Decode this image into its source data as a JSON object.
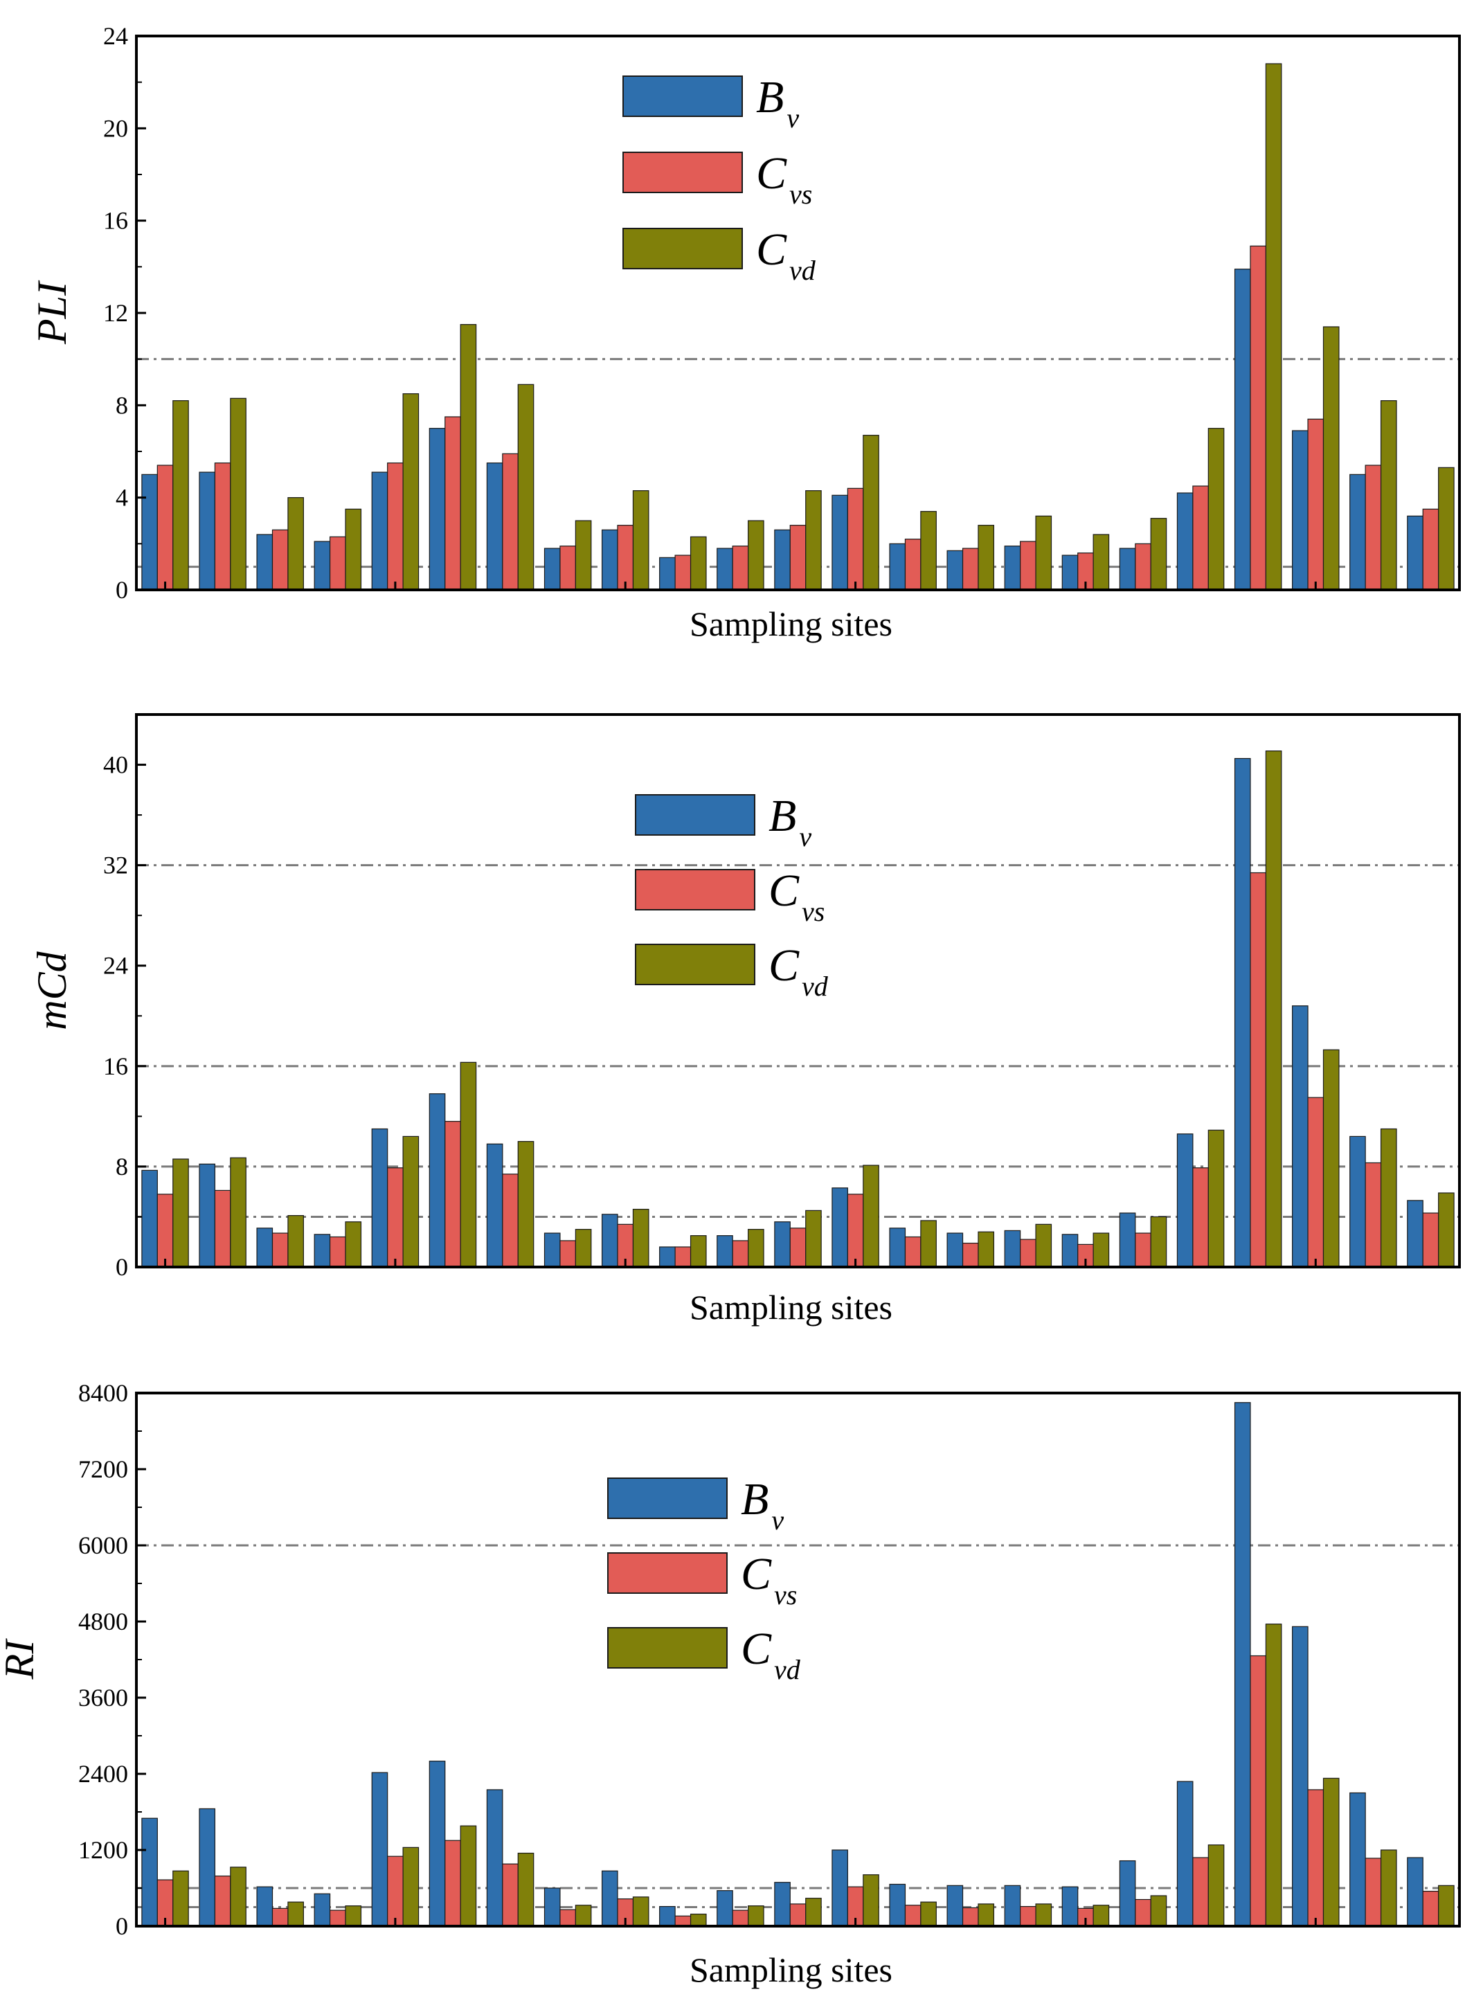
{
  "colors": {
    "Bv": "#2e6fad",
    "Cvs": "#e25c56",
    "Cvd": "#80800a",
    "frame": "#000000",
    "refline": "#7a7a7a"
  },
  "legend": [
    {
      "key": "Bv",
      "main": "B",
      "sub": "v"
    },
    {
      "key": "Cvs",
      "main": "C",
      "sub": "vs"
    },
    {
      "key": "Cvd",
      "main": "C",
      "sub": "vd"
    }
  ],
  "chart_data": [
    {
      "type": "bar",
      "title": "",
      "xlabel": "Sampling sites",
      "ylabel": "PLI",
      "ylim": [
        0,
        24
      ],
      "yticks": [
        0,
        4,
        8,
        12,
        16,
        20,
        24
      ],
      "reference_lines": [
        1,
        10
      ],
      "series": [
        {
          "name": "Bv",
          "values": [
            5.0,
            5.1,
            2.4,
            2.1,
            5.1,
            7.0,
            5.5,
            1.8,
            2.6,
            1.4,
            1.8,
            2.6,
            4.1,
            2.0,
            1.7,
            1.9,
            1.5,
            1.8,
            4.2,
            13.9,
            6.9,
            5.0,
            3.2
          ]
        },
        {
          "name": "Cvs",
          "values": [
            5.4,
            5.5,
            2.6,
            2.3,
            5.5,
            7.5,
            5.9,
            1.9,
            2.8,
            1.5,
            1.9,
            2.8,
            4.4,
            2.2,
            1.8,
            2.1,
            1.6,
            2.0,
            4.5,
            14.9,
            7.4,
            5.4,
            3.5
          ]
        },
        {
          "name": "Cvd",
          "values": [
            8.2,
            8.3,
            4.0,
            3.5,
            8.5,
            11.5,
            8.9,
            3.0,
            4.3,
            2.3,
            3.0,
            4.3,
            6.7,
            3.4,
            2.8,
            3.2,
            2.4,
            3.1,
            7.0,
            22.8,
            11.4,
            8.2,
            5.3
          ]
        }
      ]
    },
    {
      "type": "bar",
      "title": "",
      "xlabel": "Sampling sites",
      "ylabel": "mCd",
      "ylim": [
        0,
        44
      ],
      "yticks": [
        0,
        8,
        16,
        24,
        32,
        40
      ],
      "reference_lines": [
        4,
        8,
        16,
        32
      ],
      "series": [
        {
          "name": "Bv",
          "values": [
            7.7,
            8.2,
            3.1,
            2.6,
            11.0,
            13.8,
            9.8,
            2.7,
            4.2,
            1.6,
            2.5,
            3.6,
            6.3,
            3.1,
            2.7,
            2.9,
            2.6,
            4.3,
            10.6,
            40.5,
            20.8,
            10.4,
            5.3
          ]
        },
        {
          "name": "Cvs",
          "values": [
            5.8,
            6.1,
            2.7,
            2.4,
            7.9,
            11.6,
            7.4,
            2.1,
            3.4,
            1.6,
            2.1,
            3.1,
            5.8,
            2.4,
            1.9,
            2.2,
            1.8,
            2.7,
            7.9,
            31.4,
            13.5,
            8.3,
            4.3
          ]
        },
        {
          "name": "Cvd",
          "values": [
            8.6,
            8.7,
            4.1,
            3.6,
            10.4,
            16.3,
            10.0,
            3.0,
            4.6,
            2.5,
            3.0,
            4.5,
            8.1,
            3.7,
            2.8,
            3.4,
            2.7,
            4.0,
            10.9,
            41.1,
            17.3,
            11.0,
            5.9
          ]
        }
      ]
    },
    {
      "type": "bar",
      "title": "",
      "xlabel": "Sampling sites",
      "ylabel": "RI",
      "ylim": [
        0,
        8400
      ],
      "yticks": [
        0,
        1200,
        2400,
        3600,
        4800,
        6000,
        7200,
        8400
      ],
      "reference_lines": [
        300,
        600,
        6000
      ],
      "series": [
        {
          "name": "Bv",
          "values": [
            1700,
            1850,
            620,
            510,
            2420,
            2600,
            2150,
            600,
            870,
            310,
            560,
            690,
            1200,
            660,
            640,
            640,
            620,
            1030,
            2280,
            8250,
            4720,
            2100,
            1080
          ]
        },
        {
          "name": "Cvs",
          "values": [
            730,
            790,
            280,
            250,
            1100,
            1350,
            980,
            260,
            430,
            160,
            250,
            350,
            620,
            330,
            290,
            310,
            280,
            420,
            1080,
            4260,
            2150,
            1070,
            550
          ]
        },
        {
          "name": "Cvd",
          "values": [
            870,
            930,
            380,
            320,
            1240,
            1580,
            1150,
            330,
            460,
            190,
            320,
            440,
            810,
            380,
            350,
            350,
            330,
            480,
            1280,
            4760,
            2330,
            1200,
            640
          ]
        }
      ]
    }
  ]
}
